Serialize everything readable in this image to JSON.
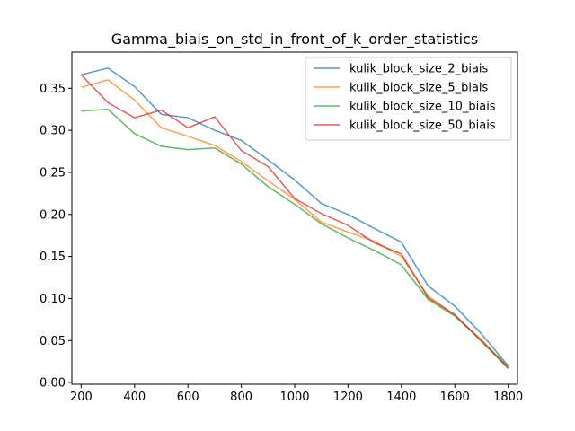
{
  "chart_data": {
    "type": "line",
    "title": "Gamma_biais_on_std_in_front_of_k_order_statistics",
    "xlabel": "",
    "ylabel": "",
    "xlim": [
      165,
      1835
    ],
    "ylim": [
      -0.002,
      0.393
    ],
    "xticks": [
      200,
      400,
      600,
      800,
      1000,
      1200,
      1400,
      1600,
      1800
    ],
    "yticks": [
      0.0,
      0.05,
      0.1,
      0.15,
      0.2,
      0.25,
      0.3,
      0.35
    ],
    "ytick_labels": [
      "0.00",
      "0.05",
      "0.10",
      "0.15",
      "0.20",
      "0.25",
      "0.30",
      "0.35"
    ],
    "grid": false,
    "legend_position": "top-right",
    "x": [
      200,
      300,
      400,
      500,
      600,
      700,
      800,
      900,
      1000,
      1100,
      1200,
      1300,
      1400,
      1500,
      1600,
      1700,
      1800
    ],
    "series": [
      {
        "name": "kulik_block_size_2_biais",
        "color": "#1f77b4",
        "values": [
          0.366,
          0.374,
          0.352,
          0.319,
          0.315,
          0.3,
          0.288,
          0.265,
          0.241,
          0.213,
          0.2,
          0.183,
          0.167,
          0.115,
          0.091,
          0.058,
          0.02
        ]
      },
      {
        "name": "kulik_block_size_5_biais",
        "color": "#ff7f0e",
        "values": [
          0.351,
          0.36,
          0.336,
          0.303,
          0.293,
          0.282,
          0.263,
          0.24,
          0.218,
          0.191,
          0.179,
          0.168,
          0.15,
          0.103,
          0.08,
          0.051,
          0.017
        ]
      },
      {
        "name": "kulik_block_size_10_biais",
        "color": "#2ca02c",
        "values": [
          0.323,
          0.325,
          0.296,
          0.281,
          0.277,
          0.279,
          0.26,
          0.233,
          0.212,
          0.189,
          0.172,
          0.157,
          0.14,
          0.099,
          0.079,
          0.05,
          0.019
        ]
      },
      {
        "name": "kulik_block_size_50_biais",
        "color": "#d62728",
        "values": [
          0.366,
          0.333,
          0.315,
          0.324,
          0.303,
          0.316,
          0.276,
          0.257,
          0.219,
          0.201,
          0.187,
          0.166,
          0.153,
          0.101,
          0.081,
          0.049,
          0.017
        ]
      }
    ]
  }
}
